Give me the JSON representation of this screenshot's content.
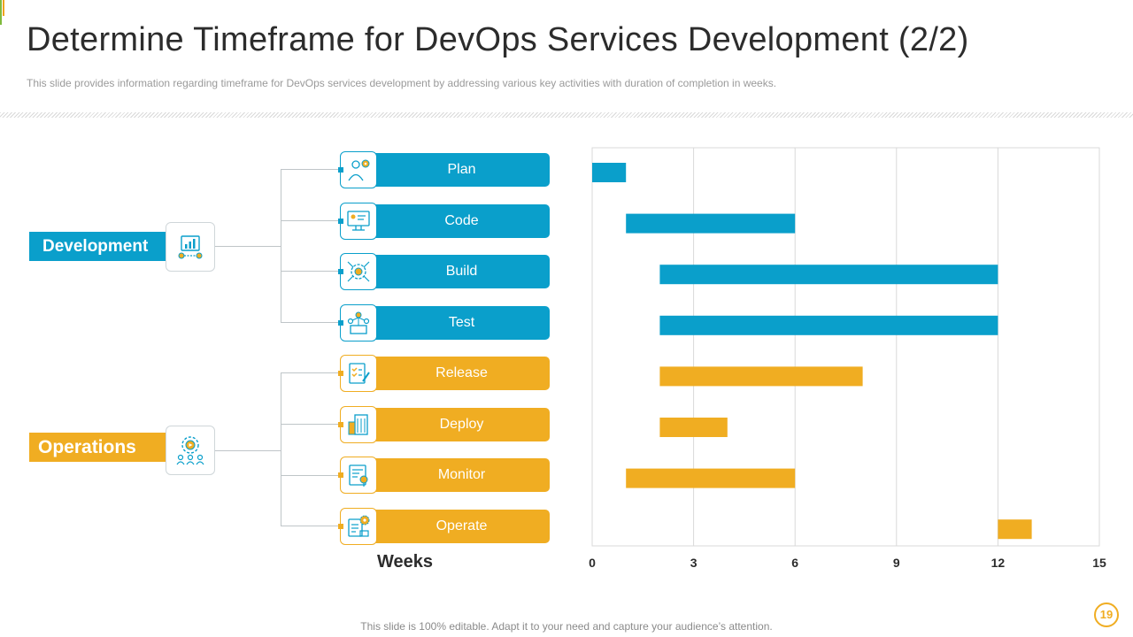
{
  "header": {
    "title": "Determine Timeframe for DevOps Services Development (2/2)",
    "subtitle": "This slide provides  information  regarding  timeframe  for  DevOps  services  development  by addressing  various  key activities  with duration  of completion  in weeks."
  },
  "categories": {
    "development": {
      "label": "Development",
      "icon": "development-chart-icon",
      "color": "#0a9fcb"
    },
    "operations": {
      "label": "Operations",
      "icon": "operations-team-icon",
      "color": "#f0ad22"
    }
  },
  "activities": [
    {
      "label": "Plan",
      "icon": "plan-person-gear-icon",
      "group": "development"
    },
    {
      "label": "Code",
      "icon": "code-monitor-icon",
      "group": "development"
    },
    {
      "label": "Build",
      "icon": "build-gear-icon",
      "group": "development"
    },
    {
      "label": "Test",
      "icon": "test-network-icon",
      "group": "development"
    },
    {
      "label": "Release",
      "icon": "release-checklist-icon",
      "group": "operations"
    },
    {
      "label": "Deploy",
      "icon": "deploy-building-icon",
      "group": "operations"
    },
    {
      "label": "Monitor",
      "icon": "monitor-report-icon",
      "group": "operations"
    },
    {
      "label": "Operate",
      "icon": "operate-gear-icon",
      "group": "operations"
    }
  ],
  "colors": {
    "blue": "#0a9fcb",
    "orange": "#f0ad22"
  },
  "chart_data": {
    "type": "bar",
    "orientation": "horizontal-gantt",
    "xlabel": "Weeks",
    "xlim": [
      0,
      15
    ],
    "xticks": [
      0,
      3,
      6,
      9,
      12,
      15
    ],
    "grid": true,
    "categories": [
      "Plan",
      "Code",
      "Build",
      "Test",
      "Release",
      "Deploy",
      "Monitor",
      "Operate"
    ],
    "series": [
      {
        "name": "Development",
        "color": "#0a9fcb",
        "tasks": [
          {
            "label": "Plan",
            "start": 0,
            "end": 1
          },
          {
            "label": "Code",
            "start": 1,
            "end": 6
          },
          {
            "label": "Build",
            "start": 2,
            "end": 12
          },
          {
            "label": "Test",
            "start": 2,
            "end": 12
          }
        ]
      },
      {
        "name": "Operations",
        "color": "#f0ad22",
        "tasks": [
          {
            "label": "Release",
            "start": 2,
            "end": 8
          },
          {
            "label": "Deploy",
            "start": 2,
            "end": 4
          },
          {
            "label": "Monitor",
            "start": 1,
            "end": 6
          },
          {
            "label": "Operate",
            "start": 12,
            "end": 13
          }
        ]
      }
    ]
  },
  "footer": {
    "note": "This slide is 100% editable. Adapt it to your need and capture your audience’s attention.",
    "page_number": "19"
  }
}
